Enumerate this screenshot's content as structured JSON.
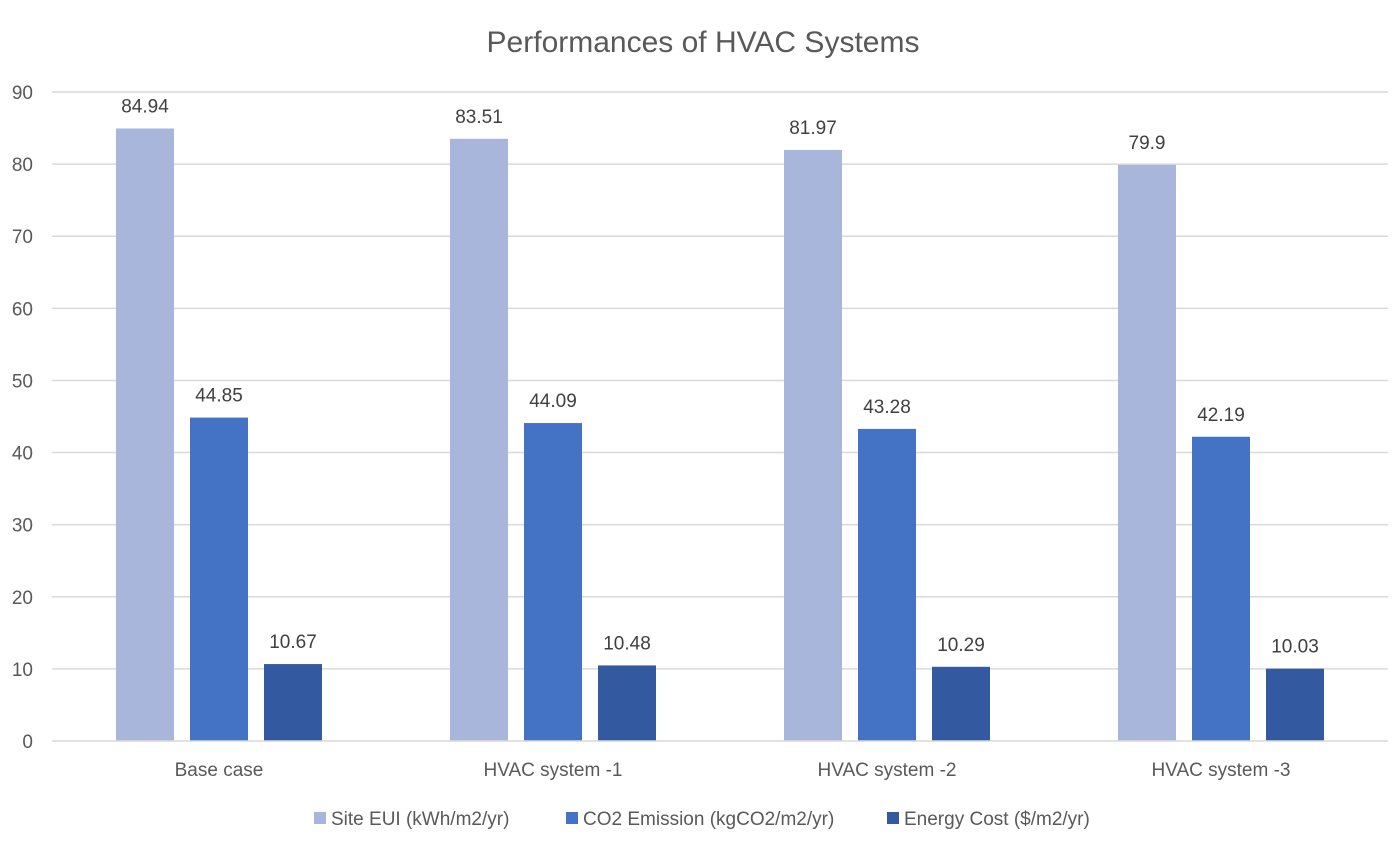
{
  "chart_data": {
    "type": "bar",
    "title": "Performances of HVAC Systems",
    "xlabel": "",
    "ylabel": "",
    "categories": [
      "Base case",
      "HVAC system -1",
      "HVAC system -2",
      "HVAC system -3"
    ],
    "series": [
      {
        "name": "Site EUI (kWh/m2/yr)",
        "color": "#a9b6db",
        "values": [
          84.94,
          83.51,
          81.97,
          79.9
        ],
        "labels": [
          "84.94",
          "83.51",
          "81.97",
          "79.9"
        ]
      },
      {
        "name": "CO2 Emission (kgCO2/m2/yr)",
        "color": "#4472c4",
        "values": [
          44.85,
          44.09,
          43.28,
          42.19
        ],
        "labels": [
          "44.85",
          "44.09",
          "43.28",
          "42.19"
        ]
      },
      {
        "name": "Energy Cost ($/m2/yr)",
        "color": "#335aa1",
        "values": [
          10.67,
          10.48,
          10.29,
          10.03
        ],
        "labels": [
          "10.67",
          "10.48",
          "10.29",
          "10.03"
        ]
      }
    ],
    "ylim": [
      0,
      90
    ],
    "yticks": [
      0,
      10,
      20,
      30,
      40,
      50,
      60,
      70,
      80,
      90
    ],
    "grid": true,
    "legend_position": "bottom"
  }
}
